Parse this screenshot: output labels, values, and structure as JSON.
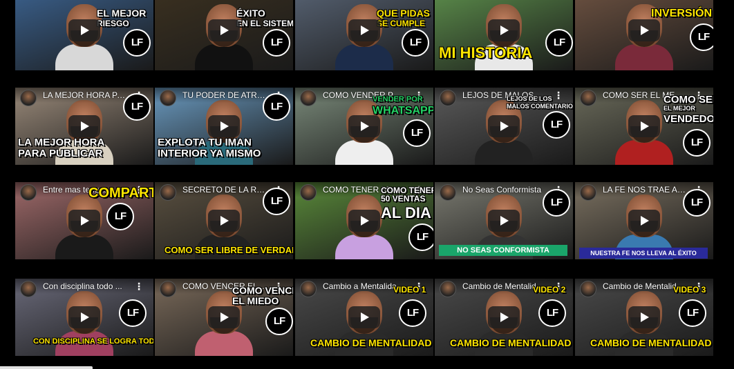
{
  "rows": [
    {
      "tiles": [
        {
          "title": "",
          "overlay_lines": [
            "EL MEJOR",
            "RIESGO"
          ],
          "overlay_color": "#ffffff",
          "banner": "",
          "bg": "#3a5f8a",
          "shirt": "#d8d8d8"
        },
        {
          "title": "",
          "overlay_lines": [
            "ÉXITO",
            "EN EL SISTEMA"
          ],
          "overlay_color": "#ffffff",
          "banner": "",
          "bg": "#3a3020",
          "shirt": "#111111"
        },
        {
          "title": "",
          "overlay_lines": [
            "QUE PIDAS",
            "SE CUMPLE"
          ],
          "overlay_color": "#ffe600",
          "banner": "",
          "bg": "#556070",
          "shirt": "#1c2c4a"
        },
        {
          "title": "",
          "overlay_lines": [
            "MI HISTORIA"
          ],
          "overlay_color": "#ffe600",
          "banner": "",
          "bg": "#5a8a4a",
          "shirt": "#e8e8e8"
        },
        {
          "title": "",
          "overlay_lines": [
            "INVERSIÓN"
          ],
          "overlay_color": "#ffe600",
          "banner": "",
          "bg": "#6a5040",
          "shirt": "#7a2a3a"
        }
      ]
    },
    {
      "tiles": [
        {
          "title": "LA MEJOR HORA PA...",
          "overlay_lines": [
            "LA MEJOR HORA",
            "PARA PUBLICAR"
          ],
          "overlay_color": "#ffffff",
          "banner": "",
          "bg": "#9a8a7a",
          "shirt": "#d8d0c0"
        },
        {
          "title": "TU PODER DE ATRA...",
          "overlay_lines": [
            "EXPLOTA TU IMAN",
            "INTERIOR YA MISMO"
          ],
          "overlay_color": "#ffffff",
          "banner": "",
          "bg": "#6a9ac0",
          "shirt": "#2a6a7a"
        },
        {
          "title": "COMO VENDER POR...",
          "overlay_lines": [
            "VENDER POR",
            "WhatsApp"
          ],
          "overlay_color": "#25d366",
          "banner": "",
          "bg": "#7a8a7a",
          "shirt": "#eeeeee"
        },
        {
          "title": "LEJOS DE MALOS C...",
          "overlay_lines": [
            "LEJOS DE LOS",
            "MALOS COMENTARIOS"
          ],
          "overlay_color": "#ffffff",
          "banner": "",
          "bg": "#5a5a5a",
          "shirt": "#222222"
        },
        {
          "title": "COMO SER EL MEJO...",
          "overlay_lines": [
            "COMO SER",
            "EL MEJOR",
            "VENDEDOR"
          ],
          "overlay_color": "#ffffff",
          "banner": "",
          "bg": "#6a6a5a",
          "shirt": "#b02020"
        }
      ]
    },
    {
      "tiles": [
        {
          "title": "Entre mas tengas, m...",
          "overlay_lines": [
            "COMPARTIR"
          ],
          "overlay_color": "#ffe600",
          "banner": "",
          "bg": "#a06a6a",
          "shirt": "#1a1a1a"
        },
        {
          "title": "SECRETO DE LA RE...",
          "overlay_lines": [
            "COMO SER LIBRE DE VERDAD"
          ],
          "overlay_color": "#ffe600",
          "banner": "",
          "bg": "#5a5040",
          "shirt": "#222222"
        },
        {
          "title": "COMO TENER 50 VE...",
          "overlay_lines": [
            "COMO TENER",
            "50 VENTAS",
            "AL DIA"
          ],
          "overlay_color": "#ffffff",
          "banner": "",
          "bg": "#5a8a3a",
          "shirt": "#c8a0e0"
        },
        {
          "title": "No Seas Conformista",
          "overlay_lines": [],
          "overlay_color": "#ffffff",
          "banner": "NO SEAS CONFORMISTA",
          "banner_bg": "#1aa56a",
          "bg": "#7a7a70",
          "shirt": "#333333"
        },
        {
          "title": "LA FE NOS TRAE AL ...",
          "overlay_lines": [],
          "overlay_color": "#ffffff",
          "banner": "NUESTRA FE NOS LLEVA AL ÉXITO",
          "banner_bg": "#2a2a9a",
          "bg": "#7a7060",
          "shirt": "#3a7ab0"
        }
      ]
    },
    {
      "tiles": [
        {
          "title": "Con disciplina todo ...",
          "overlay_lines": [
            "CON DISCIPLINA SE LOGRA TODO"
          ],
          "overlay_color": "#ffe600",
          "banner": "",
          "bg": "#6a6a7a",
          "shirt": "#a04060"
        },
        {
          "title": "COMO VENCER EL...",
          "overlay_lines": [
            "COMO VENCER",
            "EL MIEDO"
          ],
          "overlay_color": "#ffffff",
          "banner": "",
          "bg": "#7a6a5a",
          "shirt": "#c06070"
        },
        {
          "title": "Cambio a Mentalida...",
          "overlay_lines": [
            "VIDEO 1",
            "CAMBIO DE MENTALIDAD"
          ],
          "overlay_color": "#ffe600",
          "banner": "",
          "bg": "#4a4a4a",
          "shirt": "#2a2a2a"
        },
        {
          "title": "Cambio de Mentalid...",
          "overlay_lines": [
            "VIDEO 2",
            "CAMBIO DE MENTALIDAD"
          ],
          "overlay_color": "#ffe600",
          "banner": "",
          "bg": "#4a4a4a",
          "shirt": "#2a2a2a"
        },
        {
          "title": "Cambio de Mentalid...",
          "overlay_lines": [
            "VIDEO 3",
            "CAMBIO DE MENTALIDAD"
          ],
          "overlay_color": "#ffe600",
          "banner": "",
          "bg": "#4a4a4a",
          "shirt": "#2a2a2a"
        }
      ]
    }
  ],
  "logo_text": "LF",
  "kebab": "⋮"
}
